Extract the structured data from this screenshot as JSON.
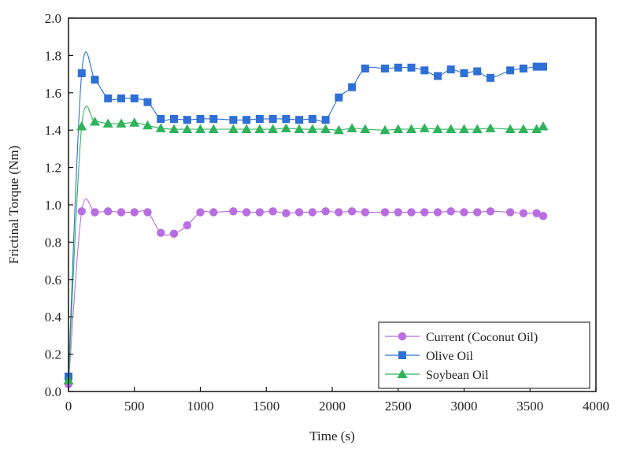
{
  "chart_data": {
    "type": "line",
    "title": "",
    "xlabel": "Time (s)",
    "ylabel": "Frictinal Torque (Nm)",
    "xlim": [
      0,
      4000
    ],
    "ylim": [
      0.0,
      2.0
    ],
    "xticks": [
      0,
      500,
      1000,
      1500,
      2000,
      2500,
      3000,
      3500,
      4000
    ],
    "yticks": [
      "0.0",
      "0.2",
      "0.4",
      "0.6",
      "0.8",
      "1.0",
      "1.2",
      "1.4",
      "1.6",
      "1.8",
      "2.0"
    ],
    "grid": false,
    "legend_position": "bottom-right",
    "series": [
      {
        "name": "Current (Coconut Oil)",
        "color": "#b86ee0",
        "marker": "circle",
        "x": [
          0,
          100,
          200,
          300,
          400,
          500,
          600,
          700,
          800,
          900,
          1000,
          1100,
          1250,
          1350,
          1450,
          1550,
          1650,
          1750,
          1850,
          1950,
          2050,
          2150,
          2250,
          2400,
          2500,
          2600,
          2700,
          2800,
          2900,
          3000,
          3100,
          3200,
          3350,
          3450,
          3550,
          3600
        ],
        "values": [
          0.04,
          0.965,
          0.96,
          0.965,
          0.96,
          0.96,
          0.96,
          0.85,
          0.845,
          0.89,
          0.96,
          0.96,
          0.965,
          0.96,
          0.96,
          0.965,
          0.955,
          0.96,
          0.96,
          0.965,
          0.96,
          0.965,
          0.96,
          0.96,
          0.96,
          0.96,
          0.96,
          0.96,
          0.965,
          0.96,
          0.96,
          0.965,
          0.96,
          0.955,
          0.955,
          0.94
        ]
      },
      {
        "name": "Olive Oil",
        "color": "#2f6fd6",
        "marker": "square",
        "x": [
          0,
          100,
          200,
          300,
          400,
          500,
          600,
          700,
          800,
          900,
          1000,
          1100,
          1250,
          1350,
          1450,
          1550,
          1650,
          1750,
          1850,
          1950,
          2050,
          2150,
          2250,
          2400,
          2500,
          2600,
          2700,
          2800,
          2900,
          3000,
          3100,
          3200,
          3350,
          3450,
          3550,
          3600
        ],
        "values": [
          0.08,
          1.705,
          1.67,
          1.57,
          1.57,
          1.57,
          1.55,
          1.46,
          1.46,
          1.455,
          1.46,
          1.46,
          1.455,
          1.455,
          1.46,
          1.46,
          1.46,
          1.455,
          1.46,
          1.455,
          1.575,
          1.63,
          1.73,
          1.73,
          1.735,
          1.735,
          1.72,
          1.69,
          1.725,
          1.705,
          1.715,
          1.68,
          1.72,
          1.73,
          1.74,
          1.74
        ]
      },
      {
        "name": "Soybean Oil",
        "color": "#2fb35a",
        "marker": "triangle",
        "x": [
          0,
          100,
          200,
          300,
          400,
          500,
          600,
          700,
          800,
          900,
          1000,
          1100,
          1250,
          1350,
          1450,
          1550,
          1650,
          1750,
          1850,
          1950,
          2050,
          2150,
          2250,
          2400,
          2500,
          2600,
          2700,
          2800,
          2900,
          3000,
          3100,
          3200,
          3350,
          3450,
          3550,
          3600
        ],
        "values": [
          0.06,
          1.42,
          1.445,
          1.435,
          1.435,
          1.44,
          1.425,
          1.41,
          1.405,
          1.405,
          1.405,
          1.405,
          1.405,
          1.405,
          1.405,
          1.405,
          1.41,
          1.405,
          1.405,
          1.405,
          1.4,
          1.41,
          1.405,
          1.4,
          1.405,
          1.405,
          1.41,
          1.405,
          1.405,
          1.405,
          1.405,
          1.41,
          1.405,
          1.405,
          1.405,
          1.42
        ]
      }
    ]
  }
}
